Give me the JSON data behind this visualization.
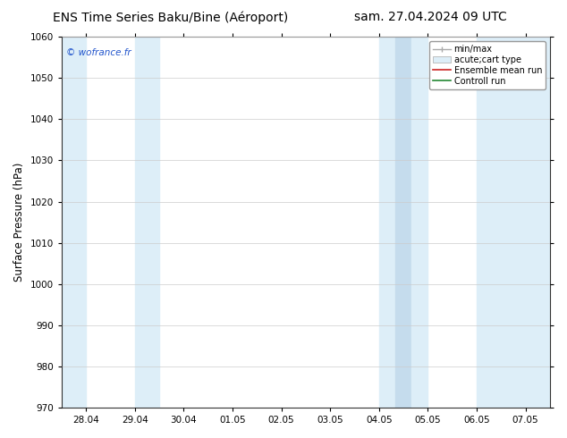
{
  "title_left": "ENS Time Series Baku/Bine (Aéroport)",
  "title_right": "sam. 27.04.2024 09 UTC",
  "ylabel": "Surface Pressure (hPa)",
  "ylim": [
    970,
    1060
  ],
  "yticks": [
    970,
    980,
    990,
    1000,
    1010,
    1020,
    1030,
    1040,
    1050,
    1060
  ],
  "xtick_labels": [
    "28.04",
    "29.04",
    "30.04",
    "01.05",
    "02.05",
    "03.05",
    "04.05",
    "05.05",
    "06.05",
    "07.05"
  ],
  "xtick_positions": [
    0,
    1,
    2,
    3,
    4,
    5,
    6,
    7,
    8,
    9
  ],
  "xlim": [
    -0.5,
    9.5
  ],
  "shaded_bands": [
    {
      "xmin": -0.5,
      "xmax": 0.0,
      "color": "#ddeef8"
    },
    {
      "xmin": 1.0,
      "xmax": 1.5,
      "color": "#ddeef8"
    },
    {
      "xmin": 6.0,
      "xmax": 6.33,
      "color": "#ddeef8"
    },
    {
      "xmin": 6.33,
      "xmax": 6.67,
      "color": "#c5dced"
    },
    {
      "xmin": 6.67,
      "xmax": 7.0,
      "color": "#ddeef8"
    },
    {
      "xmin": 8.0,
      "xmax": 9.5,
      "color": "#ddeef8"
    }
  ],
  "copyright_text": "© wofrance.fr",
  "copyright_color": "#2255cc",
  "bg_color": "#ffffff",
  "plot_bg_color": "#ffffff",
  "grid_color": "#cccccc",
  "title_fontsize": 10,
  "tick_fontsize": 7.5,
  "ylabel_fontsize": 8.5,
  "legend_fontsize": 7
}
